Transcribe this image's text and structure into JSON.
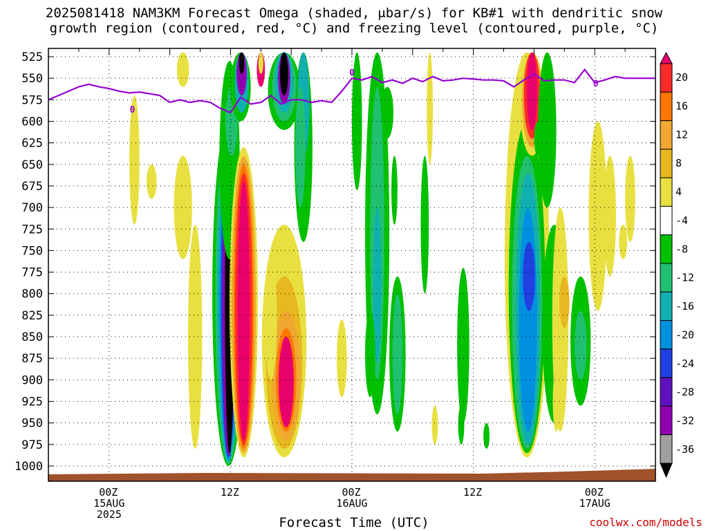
{
  "title_line1": "2025081418 NAM3KM Forecast Omega (shaded, μbar/s) for KB#1 with dendritic snow",
  "title_line2": "growth region (contoured, red, °C) and freezing level (contoured, purple, °C)",
  "credit": "coolwx.com/models",
  "chart_data": {
    "type": "heatmap",
    "title": "2025081418 NAM3KM Forecast Omega (shaded, μbar/s) for KB#1 with dendritic snow growth region (contoured, red, °C) and freezing level (contoured, purple, °C)",
    "xlabel": "Forecast Time (UTC)",
    "ylabel": "",
    "y_pressure_levels": [
      "525",
      "550",
      "575",
      "600",
      "625",
      "650",
      "675",
      "700",
      "725",
      "750",
      "775",
      "800",
      "825",
      "850",
      "875",
      "900",
      "925",
      "950",
      "975",
      "1000"
    ],
    "x_ticks": [
      {
        "time_hr": 0,
        "lines": [
          "00Z",
          "15AUG",
          "2025"
        ]
      },
      {
        "time_hr": 12,
        "lines": [
          "12Z"
        ]
      },
      {
        "time_hr": 24,
        "lines": [
          "00Z",
          "16AUG"
        ]
      },
      {
        "time_hr": 36,
        "lines": [
          "12Z"
        ]
      },
      {
        "time_hr": 48,
        "lines": [
          "00Z",
          "17AUG"
        ]
      }
    ],
    "x_range_hours_from_15AUG00Z": [
      -6,
      54
    ],
    "colorbar": {
      "labels": [
        "20",
        "16",
        "12",
        "8",
        "4",
        "-4",
        "-8",
        "-12",
        "-16",
        "-20",
        "-24",
        "-28",
        "-32",
        "-36"
      ],
      "colors": [
        "#e8006c",
        "#ff2a2a",
        "#ff7700",
        "#f0a830",
        "#e8b820",
        "#e8e040",
        "#ffffff",
        "#00c000",
        "#20c070",
        "#10b0b0",
        "#0090e0",
        "#2040e0",
        "#6010c0",
        "#9000b0",
        "#a0a0a0",
        "#000000"
      ]
    },
    "freezing_level_label": "0",
    "freezing_level_hpa": [
      [
        -6,
        575
      ],
      [
        -5,
        570
      ],
      [
        -4,
        565
      ],
      [
        -3,
        560
      ],
      [
        -2,
        557
      ],
      [
        -1,
        560
      ],
      [
        0,
        562
      ],
      [
        1,
        565
      ],
      [
        2,
        567
      ],
      [
        3,
        566
      ],
      [
        4,
        568
      ],
      [
        5,
        570
      ],
      [
        6,
        578
      ],
      [
        7,
        575
      ],
      [
        8,
        578
      ],
      [
        9,
        576
      ],
      [
        10,
        578
      ],
      [
        11,
        585
      ],
      [
        12,
        590
      ],
      [
        13,
        572
      ],
      [
        14,
        580
      ],
      [
        15,
        578
      ],
      [
        16,
        570
      ],
      [
        17,
        580
      ],
      [
        18,
        575
      ],
      [
        19,
        575
      ],
      [
        20,
        578
      ],
      [
        21,
        576
      ],
      [
        22,
        578
      ],
      [
        23,
        565
      ],
      [
        24,
        550
      ],
      [
        25,
        552
      ],
      [
        26,
        548
      ],
      [
        27,
        555
      ],
      [
        28,
        552
      ],
      [
        29,
        556
      ],
      [
        30,
        550
      ],
      [
        31,
        554
      ],
      [
        32,
        548
      ],
      [
        33,
        553
      ],
      [
        34,
        552
      ],
      [
        35,
        550
      ],
      [
        36,
        551
      ],
      [
        37,
        552
      ],
      [
        38,
        552
      ],
      [
        39,
        553
      ],
      [
        40,
        560
      ],
      [
        41,
        552
      ],
      [
        42,
        545
      ],
      [
        43,
        553
      ],
      [
        44,
        552
      ],
      [
        45,
        552
      ],
      [
        46,
        555
      ],
      [
        47,
        540
      ],
      [
        48,
        555
      ],
      [
        49,
        552
      ],
      [
        50,
        548
      ],
      [
        51,
        550
      ],
      [
        52,
        550
      ],
      [
        53,
        550
      ],
      [
        54,
        550
      ]
    ],
    "omega_features": [
      {
        "center_hr": 11.8,
        "hpa": [
          625,
          1000
        ],
        "min_value": -36
      },
      {
        "center_hr": 13.2,
        "hpa": [
          625,
          990
        ],
        "max_value": 20
      },
      {
        "center_hr": 13.0,
        "hpa": [
          520,
          600
        ],
        "min_value": -32
      },
      {
        "center_hr": 17.3,
        "hpa": [
          520,
          600
        ],
        "min_value": -36
      },
      {
        "center_hr": 17.5,
        "hpa": [
          760,
          990
        ],
        "max_value": 20
      },
      {
        "center_hr": 26.5,
        "hpa": [
          525,
          940
        ],
        "min_value": -12
      },
      {
        "center_hr": 41.3,
        "hpa": [
          700,
          990
        ],
        "min_value": -24
      },
      {
        "center_hr": 41.8,
        "hpa": [
          520,
          640
        ],
        "max_value": 20
      },
      {
        "center_hr": 46.6,
        "hpa": [
          780,
          930
        ],
        "min_value": -8
      },
      {
        "center_hr": 7.3,
        "hpa": [
          520,
          980
        ],
        "max_value": 8
      }
    ]
  }
}
